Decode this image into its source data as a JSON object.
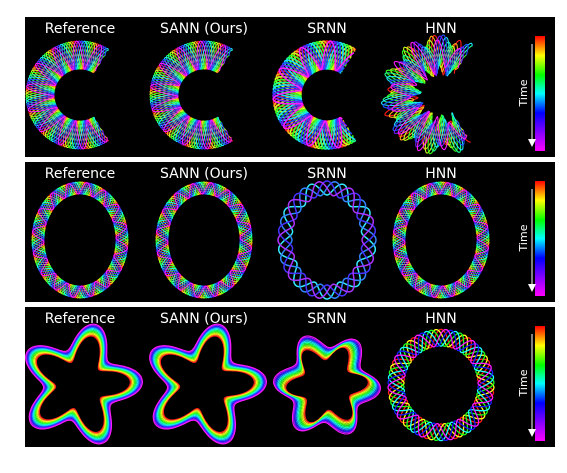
{
  "columns": [
    "Reference",
    "SANN (Ours)",
    "SRNN",
    "HNN"
  ],
  "colorbar_label": "Time",
  "colors": {
    "background": "#000000",
    "separator": "#ffffff",
    "colormap": [
      "#ff0000",
      "#ff8000",
      "#ffff00",
      "#00ff00",
      "#00ffff",
      "#0000ff",
      "#8000ff",
      "#ff00ff"
    ]
  },
  "rows": [
    {
      "shape": "open-arc",
      "panels": [
        {
          "pattern": "dense-wave-bands"
        },
        {
          "pattern": "dense-wave-bands"
        },
        {
          "pattern": "twisted-wave-bands"
        },
        {
          "pattern": "irregular-wave-bands"
        }
      ]
    },
    {
      "shape": "ring",
      "panels": [
        {
          "pattern": "dense-oscillating-ring"
        },
        {
          "pattern": "dense-oscillating-ring"
        },
        {
          "pattern": "sparse-oscillating-ring"
        },
        {
          "pattern": "dense-oscillating-ring"
        }
      ]
    },
    {
      "shape": "pentagon-loop",
      "panels": [
        {
          "pattern": "rainbow-offset-pentagon"
        },
        {
          "pattern": "rainbow-offset-pentagon"
        },
        {
          "pattern": "distorted-rainbow-loop"
        },
        {
          "pattern": "oscillating-ring"
        }
      ]
    }
  ]
}
